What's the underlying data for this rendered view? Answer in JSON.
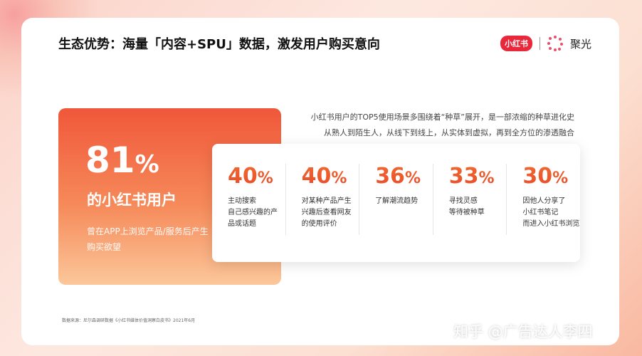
{
  "title": "生态优势：海量「内容+SPU」数据，激发用户购买意向",
  "logo": {
    "xhs": "小红书",
    "brand": "聚光"
  },
  "highlight": {
    "value": "81",
    "unit": "%",
    "subtitle": "的小红书用户",
    "description": "曾在APP上浏览产品/服务后产生购买欲望"
  },
  "intro": [
    "小红书用户的TOP5使用场景多围绕着“种草”展开，是一部浓缩的种草进化史",
    "从熟人到陌生人，从线下到线上，从实体到虚拟，再到全方位的渗透融合"
  ],
  "stats": [
    {
      "value": "40",
      "unit": "%",
      "label": "主动搜索\n自己感兴趣的产\n品或话题"
    },
    {
      "value": "40",
      "unit": "%",
      "label": "对某种产品产生\n兴趣后查看网友\n的使用评价"
    },
    {
      "value": "36",
      "unit": "%",
      "label": "了解潮流趋势"
    },
    {
      "value": "33",
      "unit": "%",
      "label": "寻找灵感\n等待被种草"
    },
    {
      "value": "30",
      "unit": "%",
      "label": "因他人分享了\n小红书笔记\n而进入小红书浏览"
    }
  ],
  "source": "数据来源：尼尔森调研数据《小红书媒体价值洞察白皮书》2021年6月",
  "watermark": "知乎 @广告达人李四",
  "colors": {
    "accent": "#ec5a2e",
    "brand": "#e8283b"
  }
}
